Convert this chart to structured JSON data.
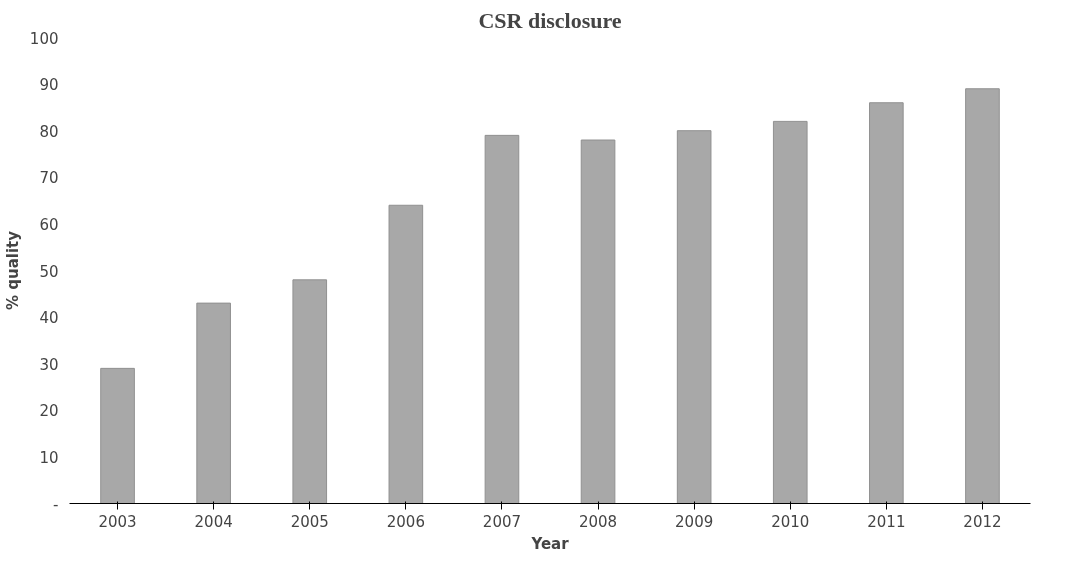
{
  "chart_data": {
    "type": "bar",
    "title": "CSR disclosure",
    "xlabel": "Year",
    "ylabel": "% quality",
    "categories": [
      "2003",
      "2004",
      "2005",
      "2006",
      "2007",
      "2008",
      "2009",
      "2010",
      "2011",
      "2012"
    ],
    "values": [
      29,
      43,
      48,
      64,
      79,
      78,
      80,
      82,
      86,
      89
    ],
    "color": "#a8a8a8",
    "ylim": [
      0,
      100
    ],
    "yticks": [
      {
        "value": 0,
        "label": "-"
      },
      10,
      20,
      30,
      40,
      50,
      60,
      70,
      80,
      90,
      100
    ],
    "grid": false
  }
}
